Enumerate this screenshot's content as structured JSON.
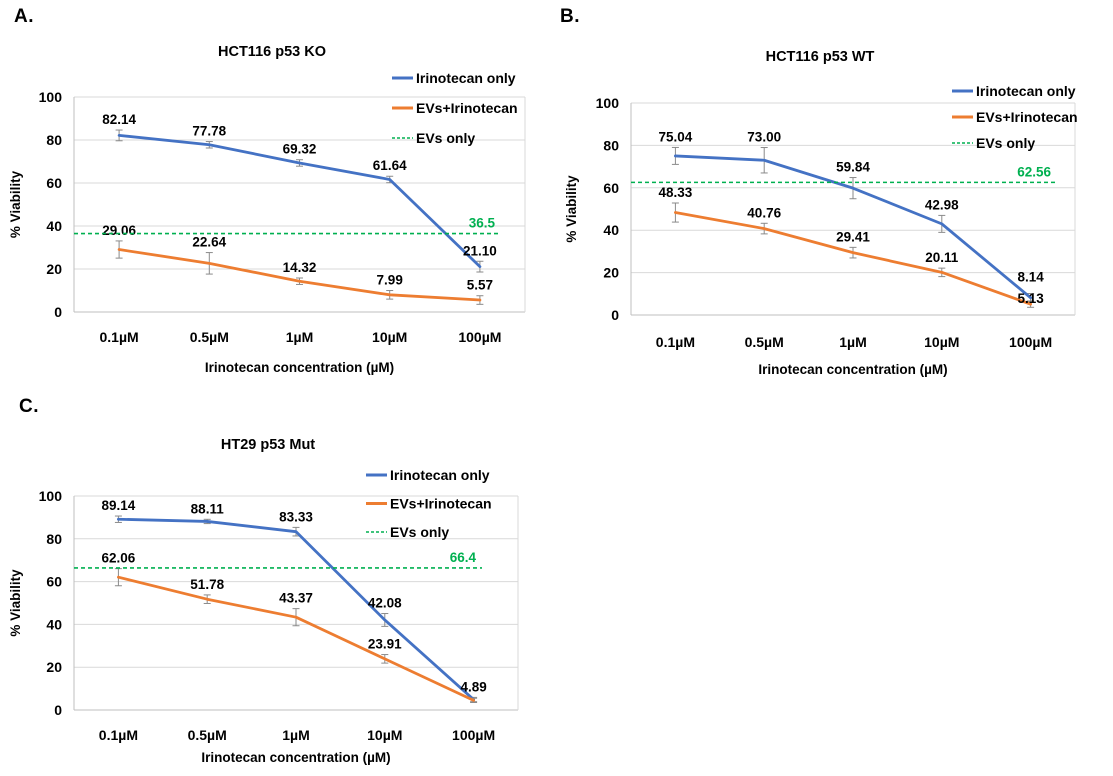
{
  "figure": {
    "background": "#ffffff",
    "grid_color": "#d9d9d9",
    "axis_color": "#bfbfbf",
    "error_bar_color": "#8a8a8a",
    "text_color": "#000000"
  },
  "chart_data": [
    {
      "type": "line",
      "panel_letter": "A.",
      "title": "HCT116 p53 KO",
      "xlabel": "Irinotecan concentration (µM)",
      "ylabel": "% Viability",
      "ylim": [
        0,
        100
      ],
      "yticks": [
        0,
        20,
        40,
        60,
        80,
        100
      ],
      "categories": [
        "0.1µM",
        "0.5µM",
        "1µM",
        "10µM",
        "100µM"
      ],
      "grid": true,
      "legend_position": "top-right",
      "series": [
        {
          "name": "Irinotecan only",
          "color": "#4472C4",
          "style": "solid",
          "values": [
            82.14,
            77.78,
            69.32,
            61.64,
            21.1
          ],
          "labels": [
            "82.14",
            "77.78",
            "69.32",
            "61.64",
            "21.10"
          ],
          "errors": [
            2.5,
            1.5,
            1.5,
            1.5,
            2.5
          ]
        },
        {
          "name": "EVs+Irinotecan",
          "color": "#ED7D31",
          "style": "solid",
          "values": [
            29.06,
            22.64,
            14.32,
            7.99,
            5.57
          ],
          "labels": [
            "29.06",
            "22.64",
            "14.32",
            "7.99",
            "5.57"
          ],
          "errors": [
            4,
            5,
            1.5,
            2,
            2
          ]
        },
        {
          "name": "EVs only",
          "color": "#00B050",
          "style": "dashed",
          "ref_value": 36.5,
          "ref_label": "36.5"
        }
      ]
    },
    {
      "type": "line",
      "panel_letter": "B.",
      "title": "HCT116 p53 WT",
      "xlabel": "Irinotecan concentration (µM)",
      "ylabel": "% Viability",
      "ylim": [
        0,
        100
      ],
      "yticks": [
        0,
        20,
        40,
        60,
        80,
        100
      ],
      "categories": [
        "0.1µM",
        "0.5µM",
        "1µM",
        "10µM",
        "100µM"
      ],
      "grid": true,
      "legend_position": "top-right",
      "series": [
        {
          "name": "Irinotecan only",
          "color": "#4472C4",
          "style": "solid",
          "values": [
            75.04,
            73.0,
            59.84,
            42.98,
            8.14
          ],
          "labels": [
            "75.04",
            "73.00",
            "59.84",
            "42.98",
            "8.14"
          ],
          "errors": [
            4,
            6,
            5,
            4,
            2
          ]
        },
        {
          "name": "EVs+Irinotecan",
          "color": "#ED7D31",
          "style": "solid",
          "values": [
            48.33,
            40.76,
            29.41,
            20.11,
            5.13
          ],
          "labels": [
            "48.33",
            "40.76",
            "29.41",
            "20.11",
            "5.13"
          ],
          "errors": [
            4.5,
            2.5,
            2.5,
            2,
            1.5
          ]
        },
        {
          "name": "EVs only",
          "color": "#00B050",
          "style": "dashed",
          "ref_value": 62.56,
          "ref_label": "62.56"
        }
      ]
    },
    {
      "type": "line",
      "panel_letter": "C.",
      "title": "HT29 p53 Mut",
      "xlabel": "Irinotecan concentration (µM)",
      "ylabel": "% Viability",
      "ylim": [
        0,
        100
      ],
      "yticks": [
        0,
        20,
        40,
        60,
        80,
        100
      ],
      "categories": [
        "0.1µM",
        "0.5µM",
        "1µM",
        "10µM",
        "100µM"
      ],
      "grid": true,
      "legend_position": "top-right",
      "series": [
        {
          "name": "Irinotecan only",
          "color": "#4472C4",
          "style": "solid",
          "values": [
            89.14,
            88.11,
            83.33,
            42.08,
            4.89
          ],
          "labels": [
            "89.14",
            "88.11",
            "83.33",
            "42.08",
            "4.89"
          ],
          "errors": [
            1.5,
            1,
            2,
            3,
            1
          ]
        },
        {
          "name": "EVs+Irinotecan",
          "color": "#ED7D31",
          "style": "solid",
          "values": [
            62.06,
            51.78,
            43.37,
            23.91,
            4.5
          ],
          "labels": [
            "62.06",
            "51.78",
            "43.37",
            "23.91",
            ""
          ],
          "errors": [
            4,
            2,
            4,
            2,
            1
          ]
        },
        {
          "name": "EVs only",
          "color": "#00B050",
          "style": "dashed",
          "ref_value": 66.4,
          "ref_label": "66.4"
        }
      ]
    }
  ]
}
